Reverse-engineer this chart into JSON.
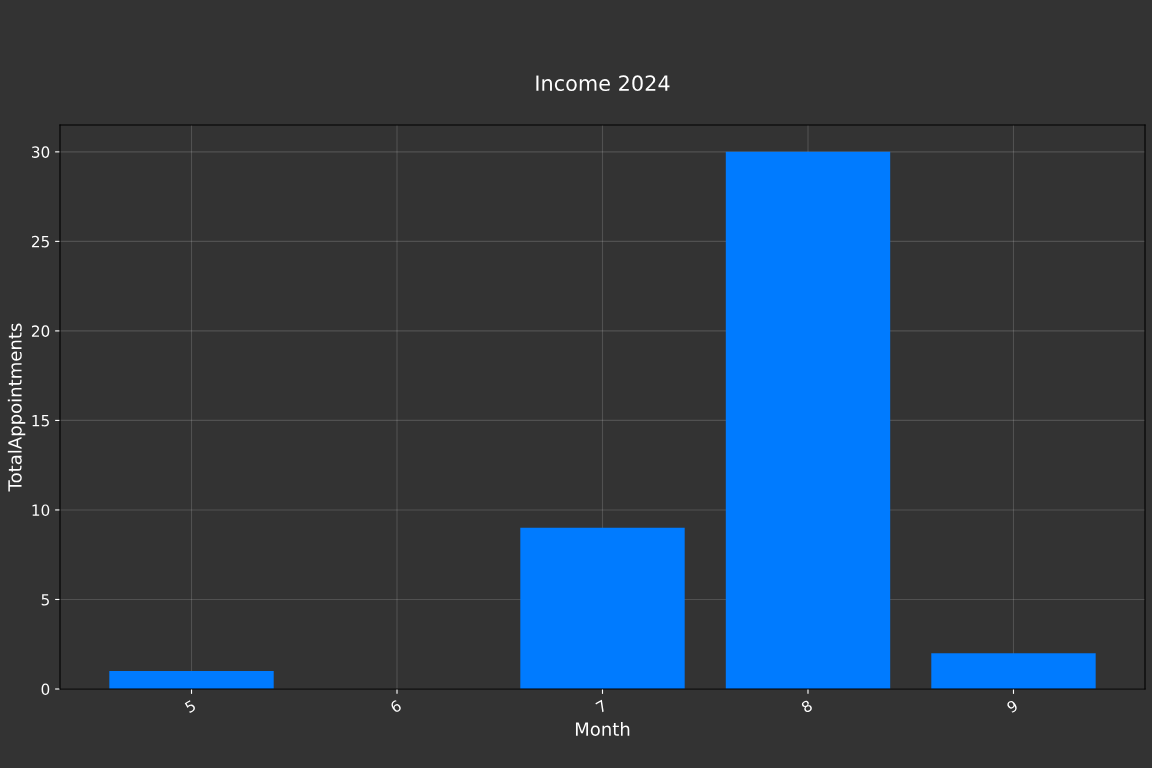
{
  "chart_data": {
    "type": "bar",
    "title": "Income 2024",
    "xlabel": "Month",
    "ylabel": "TotalAppointments",
    "categories": [
      "5",
      "6",
      "7",
      "8",
      "9"
    ],
    "values": [
      1,
      0,
      9,
      30,
      2
    ],
    "color": "#007bff",
    "ylim": [
      0,
      31.5
    ],
    "yticks": [
      0,
      5,
      10,
      15,
      20,
      25,
      30
    ],
    "grid": true,
    "legend": false
  }
}
